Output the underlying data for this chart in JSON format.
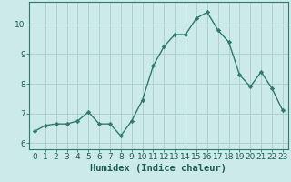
{
  "x": [
    0,
    1,
    2,
    3,
    4,
    5,
    6,
    7,
    8,
    9,
    10,
    11,
    12,
    13,
    14,
    15,
    16,
    17,
    18,
    19,
    20,
    21,
    22,
    23
  ],
  "y": [
    6.4,
    6.6,
    6.65,
    6.65,
    6.75,
    7.05,
    6.65,
    6.65,
    6.25,
    6.75,
    7.45,
    8.6,
    9.25,
    9.65,
    9.65,
    10.2,
    10.4,
    9.8,
    9.4,
    8.3,
    7.9,
    8.4,
    7.85,
    7.1
  ],
  "line_color": "#2e7a6e",
  "marker": "D",
  "marker_size": 2.2,
  "background_color": "#cceae7",
  "grid_color": "#aaccca",
  "xlabel": "Humidex (Indice chaleur)",
  "ylim": [
    5.8,
    10.75
  ],
  "xlim": [
    -0.5,
    23.5
  ],
  "yticks": [
    6,
    7,
    8,
    9,
    10
  ],
  "xticks": [
    0,
    1,
    2,
    3,
    4,
    5,
    6,
    7,
    8,
    9,
    10,
    11,
    12,
    13,
    14,
    15,
    16,
    17,
    18,
    19,
    20,
    21,
    22,
    23
  ],
  "xlabel_fontsize": 7.5,
  "tick_fontsize": 6.5,
  "axis_label_color": "#1a5c52",
  "tick_color": "#1a5c52",
  "spine_color": "#2e7a6e",
  "linewidth": 1.0
}
